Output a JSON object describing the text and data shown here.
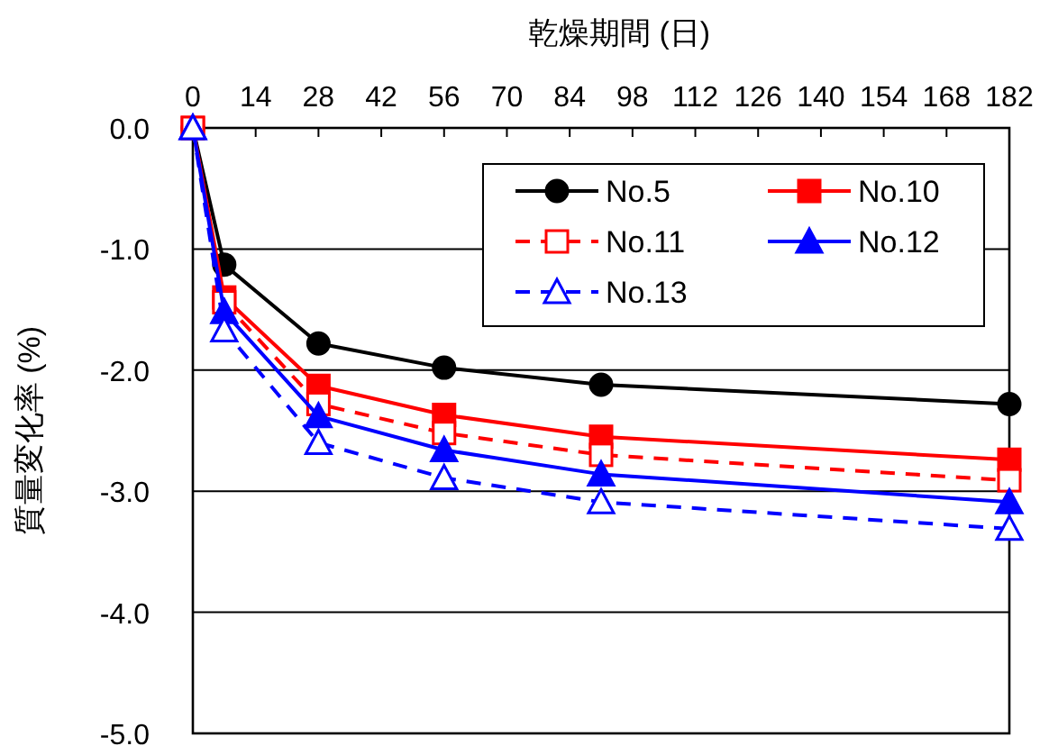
{
  "chart_data": {
    "type": "line",
    "xlabel": "乾燥期間 (日)",
    "ylabel": "質量変化率 (%)",
    "x": [
      0,
      7,
      28,
      56,
      91,
      182
    ],
    "series": [
      {
        "name": "No.5",
        "color": "#000000",
        "marker": "circle",
        "line_style": "solid",
        "values": [
          0,
          -1.13,
          -1.78,
          -1.98,
          -2.12,
          -2.28
        ]
      },
      {
        "name": "No.10",
        "color": "#ff0000",
        "marker": "square",
        "line_style": "solid",
        "values": [
          0,
          -1.4,
          -2.13,
          -2.37,
          -2.55,
          -2.74
        ]
      },
      {
        "name": "No.11",
        "color": "#ff0000",
        "marker": "square",
        "line_style": "dashed",
        "values": [
          0,
          -1.44,
          -2.28,
          -2.52,
          -2.7,
          -2.91
        ]
      },
      {
        "name": "No.12",
        "color": "#0000ff",
        "marker": "triangle",
        "line_style": "solid",
        "values": [
          0,
          -1.52,
          -2.38,
          -2.66,
          -2.86,
          -3.09
        ]
      },
      {
        "name": "No.13",
        "color": "#0000ff",
        "marker": "triangle",
        "line_style": "dashed",
        "values": [
          0,
          -1.67,
          -2.6,
          -2.89,
          -3.09,
          -3.31
        ]
      }
    ],
    "xlim": [
      0,
      182
    ],
    "xticks": [
      0,
      14,
      28,
      42,
      56,
      70,
      84,
      98,
      112,
      126,
      140,
      154,
      168,
      182
    ],
    "ylim": [
      -5,
      0
    ],
    "yticks": [
      {
        "value": 0,
        "label": "0.0"
      },
      {
        "value": -1,
        "label": "-1.0"
      },
      {
        "value": -2,
        "label": "-2.0"
      },
      {
        "value": -3,
        "label": "-3.0"
      },
      {
        "value": -4,
        "label": "-4.0"
      },
      {
        "value": -5,
        "label": "-5.0"
      }
    ],
    "grid": "y",
    "legend": "top right"
  }
}
